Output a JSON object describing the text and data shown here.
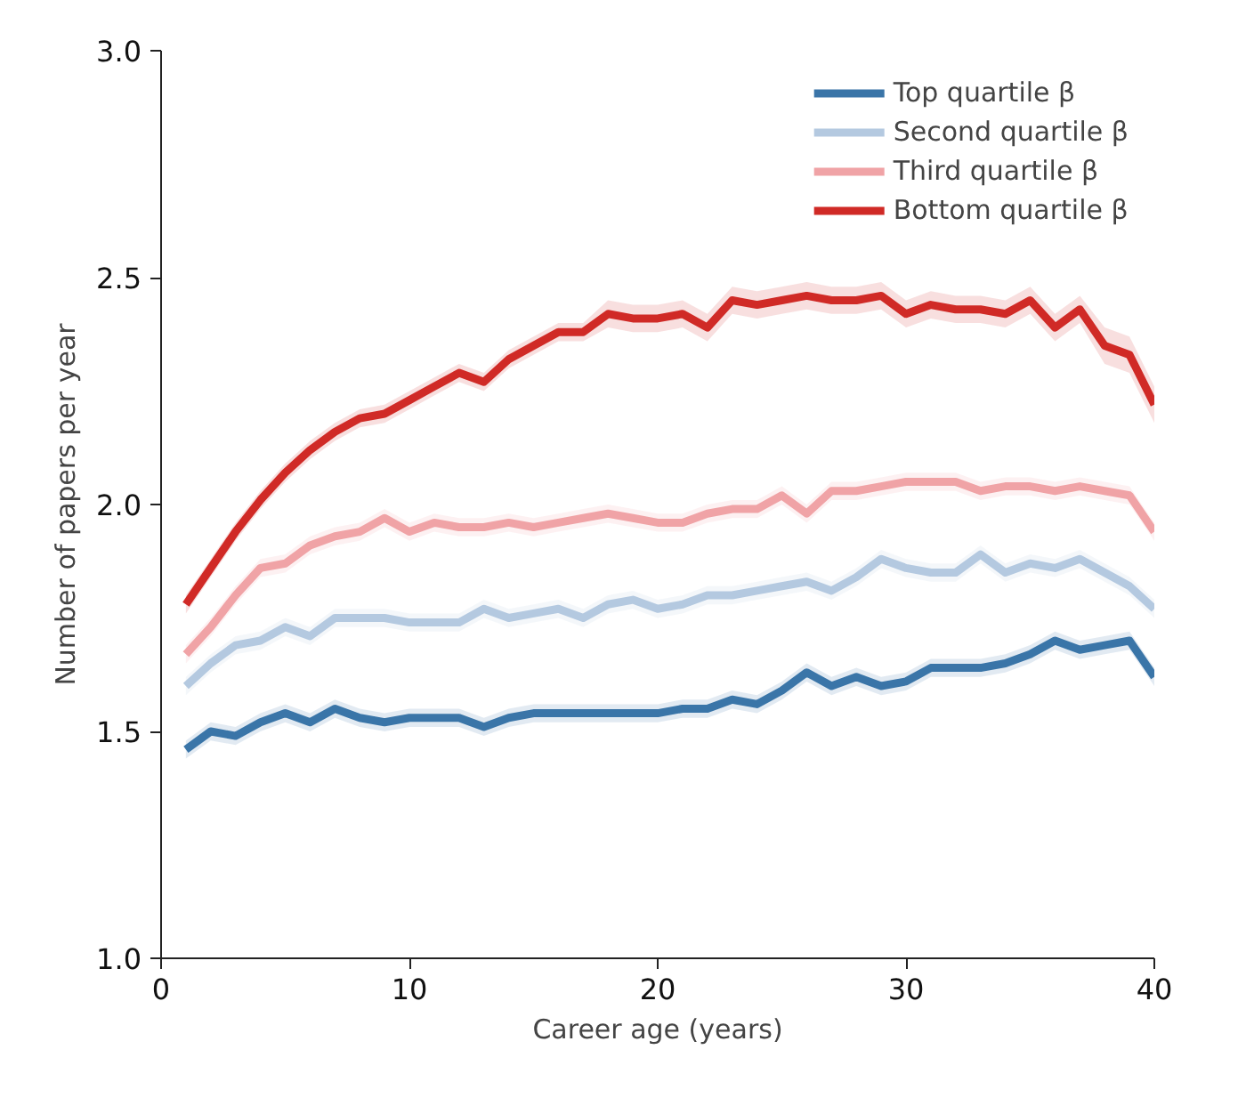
{
  "chart_data": {
    "type": "line",
    "xlabel": "Career age (years)",
    "ylabel": "Number of papers per year",
    "x": [
      1,
      2,
      3,
      4,
      5,
      6,
      7,
      8,
      9,
      10,
      11,
      12,
      13,
      14,
      15,
      16,
      17,
      18,
      19,
      20,
      21,
      22,
      23,
      24,
      25,
      26,
      27,
      28,
      29,
      30,
      31,
      32,
      33,
      34,
      35,
      36,
      37,
      38,
      39,
      40
    ],
    "xlim": [
      0,
      40
    ],
    "xticks": [
      0,
      10,
      20,
      30,
      40
    ],
    "ylim": [
      1,
      3
    ],
    "yticks": [
      {
        "value": 1,
        "label": "1.0"
      },
      {
        "value": 1.5,
        "label": "1.5"
      },
      {
        "value": 2,
        "label": "2.0"
      },
      {
        "value": 2.5,
        "label": "2.5"
      },
      {
        "value": 3,
        "label": "3.0"
      }
    ],
    "grid": false,
    "legend": "top right",
    "line_style": "solid",
    "marker": "none",
    "series": [
      {
        "name": "Top quartile β",
        "color": "#3a75a8",
        "values": [
          1.46,
          1.5,
          1.49,
          1.52,
          1.54,
          1.52,
          1.55,
          1.53,
          1.52,
          1.53,
          1.53,
          1.53,
          1.51,
          1.53,
          1.54,
          1.54,
          1.54,
          1.54,
          1.54,
          1.54,
          1.55,
          1.55,
          1.57,
          1.56,
          1.59,
          1.63,
          1.6,
          1.62,
          1.6,
          1.61,
          1.64,
          1.64,
          1.64,
          1.65,
          1.67,
          1.7,
          1.68,
          1.69,
          1.7,
          1.62
        ],
        "lower": [
          1.44,
          1.48,
          1.47,
          1.5,
          1.52,
          1.5,
          1.53,
          1.51,
          1.5,
          1.51,
          1.51,
          1.51,
          1.49,
          1.51,
          1.52,
          1.52,
          1.52,
          1.52,
          1.52,
          1.52,
          1.53,
          1.53,
          1.55,
          1.54,
          1.57,
          1.61,
          1.58,
          1.6,
          1.58,
          1.59,
          1.62,
          1.62,
          1.62,
          1.63,
          1.65,
          1.68,
          1.66,
          1.67,
          1.68,
          1.6
        ],
        "upper": [
          1.48,
          1.52,
          1.51,
          1.54,
          1.56,
          1.54,
          1.57,
          1.55,
          1.54,
          1.55,
          1.55,
          1.55,
          1.53,
          1.55,
          1.56,
          1.56,
          1.56,
          1.56,
          1.56,
          1.56,
          1.57,
          1.57,
          1.59,
          1.58,
          1.61,
          1.65,
          1.62,
          1.64,
          1.62,
          1.63,
          1.66,
          1.66,
          1.66,
          1.67,
          1.69,
          1.72,
          1.7,
          1.71,
          1.72,
          1.64
        ]
      },
      {
        "name": "Second quartile β",
        "color": "#b4c9e0",
        "values": [
          1.6,
          1.65,
          1.69,
          1.7,
          1.73,
          1.71,
          1.75,
          1.75,
          1.75,
          1.74,
          1.74,
          1.74,
          1.77,
          1.75,
          1.76,
          1.77,
          1.75,
          1.78,
          1.79,
          1.77,
          1.78,
          1.8,
          1.8,
          1.81,
          1.82,
          1.83,
          1.81,
          1.84,
          1.88,
          1.86,
          1.85,
          1.85,
          1.89,
          1.85,
          1.87,
          1.86,
          1.88,
          1.85,
          1.82,
          1.77
        ],
        "lower": [
          1.58,
          1.63,
          1.67,
          1.68,
          1.71,
          1.69,
          1.73,
          1.73,
          1.73,
          1.72,
          1.72,
          1.72,
          1.75,
          1.73,
          1.74,
          1.75,
          1.73,
          1.76,
          1.77,
          1.75,
          1.76,
          1.78,
          1.78,
          1.79,
          1.8,
          1.81,
          1.79,
          1.82,
          1.86,
          1.84,
          1.83,
          1.83,
          1.87,
          1.83,
          1.85,
          1.84,
          1.86,
          1.83,
          1.8,
          1.75
        ],
        "upper": [
          1.62,
          1.67,
          1.71,
          1.72,
          1.75,
          1.73,
          1.77,
          1.77,
          1.77,
          1.76,
          1.76,
          1.76,
          1.79,
          1.77,
          1.78,
          1.79,
          1.77,
          1.8,
          1.81,
          1.79,
          1.8,
          1.82,
          1.82,
          1.83,
          1.84,
          1.85,
          1.83,
          1.86,
          1.9,
          1.88,
          1.87,
          1.87,
          1.91,
          1.87,
          1.89,
          1.88,
          1.9,
          1.87,
          1.84,
          1.79
        ]
      },
      {
        "name": "Third quartile β",
        "color": "#f0a3a6",
        "values": [
          1.67,
          1.73,
          1.8,
          1.86,
          1.87,
          1.91,
          1.93,
          1.94,
          1.97,
          1.94,
          1.96,
          1.95,
          1.95,
          1.96,
          1.95,
          1.96,
          1.97,
          1.98,
          1.97,
          1.96,
          1.96,
          1.98,
          1.99,
          1.99,
          2.02,
          1.98,
          2.03,
          2.03,
          2.04,
          2.05,
          2.05,
          2.05,
          2.03,
          2.04,
          2.04,
          2.03,
          2.04,
          2.03,
          2.02,
          1.94
        ],
        "lower": [
          1.65,
          1.71,
          1.78,
          1.84,
          1.85,
          1.89,
          1.91,
          1.92,
          1.95,
          1.92,
          1.94,
          1.93,
          1.93,
          1.94,
          1.93,
          1.94,
          1.95,
          1.96,
          1.95,
          1.94,
          1.94,
          1.96,
          1.97,
          1.97,
          2.0,
          1.96,
          2.01,
          2.01,
          2.02,
          2.03,
          2.03,
          2.03,
          2.01,
          2.02,
          2.02,
          2.01,
          2.02,
          2.01,
          2.0,
          1.92
        ],
        "upper": [
          1.69,
          1.75,
          1.82,
          1.88,
          1.89,
          1.93,
          1.95,
          1.96,
          1.99,
          1.96,
          1.98,
          1.97,
          1.97,
          1.98,
          1.97,
          1.98,
          1.99,
          2.0,
          1.99,
          1.98,
          1.98,
          2.0,
          2.01,
          2.01,
          2.04,
          2.0,
          2.05,
          2.05,
          2.06,
          2.07,
          2.07,
          2.07,
          2.05,
          2.06,
          2.06,
          2.05,
          2.06,
          2.05,
          2.04,
          1.96
        ]
      },
      {
        "name": "Bottom quartile β",
        "color": "#d02a26",
        "values": [
          1.78,
          1.86,
          1.94,
          2.01,
          2.07,
          2.12,
          2.16,
          2.19,
          2.2,
          2.23,
          2.26,
          2.29,
          2.27,
          2.32,
          2.35,
          2.38,
          2.38,
          2.42,
          2.41,
          2.41,
          2.42,
          2.39,
          2.45,
          2.44,
          2.45,
          2.46,
          2.45,
          2.45,
          2.46,
          2.42,
          2.44,
          2.43,
          2.43,
          2.42,
          2.45,
          2.39,
          2.43,
          2.35,
          2.33,
          2.22
        ],
        "lower": [
          1.76,
          1.84,
          1.92,
          1.99,
          2.05,
          2.1,
          2.14,
          2.17,
          2.18,
          2.21,
          2.24,
          2.27,
          2.25,
          2.3,
          2.33,
          2.36,
          2.36,
          2.39,
          2.38,
          2.38,
          2.39,
          2.36,
          2.42,
          2.41,
          2.42,
          2.43,
          2.42,
          2.42,
          2.43,
          2.39,
          2.41,
          2.4,
          2.4,
          2.39,
          2.42,
          2.36,
          2.4,
          2.31,
          2.29,
          2.18
        ],
        "upper": [
          1.8,
          1.88,
          1.96,
          2.03,
          2.09,
          2.14,
          2.18,
          2.21,
          2.22,
          2.25,
          2.28,
          2.31,
          2.29,
          2.34,
          2.37,
          2.4,
          2.4,
          2.45,
          2.44,
          2.44,
          2.45,
          2.42,
          2.48,
          2.47,
          2.48,
          2.49,
          2.48,
          2.48,
          2.49,
          2.45,
          2.47,
          2.46,
          2.46,
          2.45,
          2.48,
          2.42,
          2.46,
          2.39,
          2.37,
          2.26
        ]
      }
    ]
  }
}
